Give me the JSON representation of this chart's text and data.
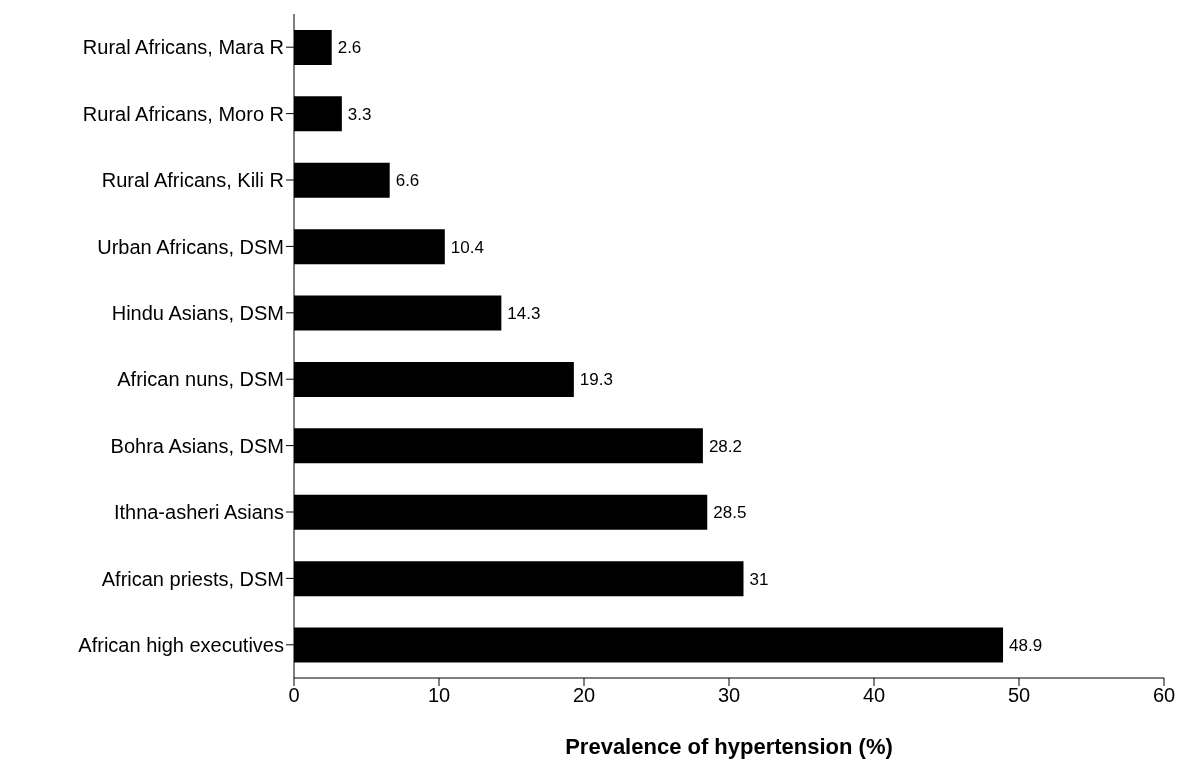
{
  "chart_data": {
    "type": "bar",
    "orientation": "horizontal",
    "xlabel": "Prevalence of hypertension (%)",
    "categories": [
      "Rural Africans, Mara R",
      "Rural Africans, Moro R",
      "Rural Africans, Kili R",
      "Urban Africans, DSM",
      "Hindu Asians, DSM",
      "African nuns, DSM",
      "Bohra Asians, DSM",
      "Ithna-asheri Asians",
      "African priests, DSM",
      "African high executives"
    ],
    "values": [
      2.6,
      3.3,
      6.6,
      10.4,
      14.3,
      19.3,
      28.2,
      28.5,
      31,
      48.9
    ],
    "color": "#000000",
    "xlim": [
      0,
      60
    ],
    "xticks": [
      0,
      10,
      20,
      30,
      40,
      50,
      60
    ],
    "data_labels": true
  }
}
